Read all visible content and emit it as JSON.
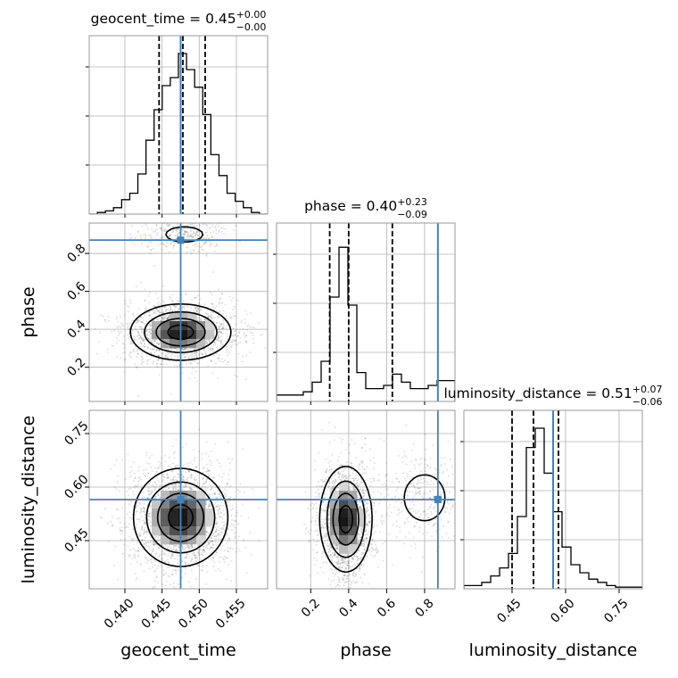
{
  "chart_data": {
    "type": "corner",
    "params": [
      "geocent_time",
      "phase",
      "luminosity_distance"
    ],
    "axis_labels": [
      "geocent_time",
      "phase",
      "luminosity_distance"
    ],
    "truths": [
      0.4475,
      0.87,
      0.565
    ],
    "titles": [
      {
        "prefix": "geocent_time = 0.45",
        "upper": "+0.00",
        "lower": "−0.00"
      },
      {
        "prefix": "phase = 0.40",
        "upper": "+0.23",
        "lower": "−0.09"
      },
      {
        "prefix": "luminosity_distance = 0.51",
        "upper": "+0.07",
        "lower": "−0.06"
      }
    ],
    "ranges": [
      [
        0.4352,
        0.4592
      ],
      [
        0.02,
        0.96
      ],
      [
        0.315,
        0.815
      ]
    ],
    "ticks": [
      {
        "values": [
          0.44,
          0.445,
          0.45,
          0.455
        ],
        "labels": [
          "0.440",
          "0.445",
          "0.450",
          "0.455"
        ]
      },
      {
        "values": [
          0.2,
          0.4,
          0.6,
          0.8
        ],
        "labels": [
          "0.2",
          "0.4",
          "0.6",
          "0.8"
        ]
      },
      {
        "values": [
          0.45,
          0.6,
          0.75
        ],
        "labels": [
          "0.45",
          "0.60",
          "0.75"
        ]
      }
    ],
    "histograms": [
      {
        "quantiles": [
          0.4446,
          0.4478,
          0.4508
        ],
        "counts": [
          0,
          1,
          2,
          4,
          9,
          13,
          25,
          46,
          65,
          80,
          85,
          100,
          90,
          79,
          62,
          37,
          24,
          13,
          8,
          4,
          1,
          0
        ]
      },
      {
        "quantiles": [
          0.3,
          0.4,
          0.63
        ],
        "counts": [
          4,
          4,
          4,
          6,
          12,
          25,
          65,
          96,
          60,
          18,
          8,
          8,
          10,
          17,
          12,
          8,
          8,
          10,
          13,
          13
        ]
      },
      {
        "quantiles": [
          0.45,
          0.51,
          0.58
        ],
        "counts": [
          2,
          2,
          4,
          8,
          13,
          22,
          45,
          88,
          100,
          72,
          48,
          26,
          15,
          10,
          6,
          4,
          2,
          1,
          1,
          1
        ]
      }
    ],
    "pairs": [
      {
        "x": 0,
        "y": 1,
        "modes": [
          {
            "cx": 0.4475,
            "cy": 0.385,
            "sx": 0.0032,
            "sy": 0.07,
            "w": 0.85
          },
          {
            "cx": 0.448,
            "cy": 0.9,
            "sx": 0.0025,
            "sy": 0.04,
            "w": 0.15
          }
        ]
      },
      {
        "x": 0,
        "y": 2,
        "modes": [
          {
            "cx": 0.4475,
            "cy": 0.515,
            "sx": 0.003,
            "sy": 0.065,
            "w": 1.0
          }
        ]
      },
      {
        "x": 1,
        "y": 2,
        "modes": [
          {
            "cx": 0.385,
            "cy": 0.51,
            "sx": 0.065,
            "sy": 0.07,
            "w": 0.84
          },
          {
            "cx": 0.8,
            "cy": 0.57,
            "sx": 0.1,
            "sy": 0.06,
            "w": 0.16
          }
        ]
      }
    ],
    "truth_color": "#4682b4",
    "grid": true
  }
}
